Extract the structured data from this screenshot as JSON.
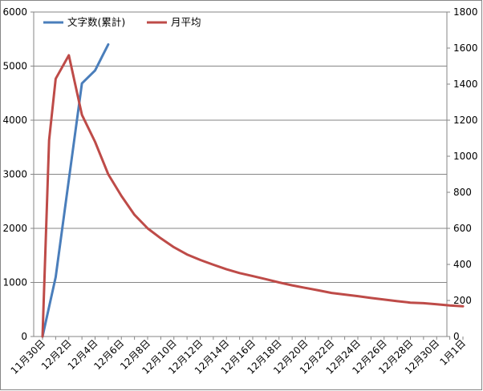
{
  "chart_data": {
    "type": "line",
    "title": "",
    "xlabel": "",
    "ylabel": "",
    "grid": true,
    "legend_position": "top-left",
    "x_tick_labels": [
      "11月30日",
      "12月2日",
      "12月4日",
      "12月6日",
      "12月8日",
      "12月10日",
      "12月12日",
      "12月14日",
      "12月16日",
      "12月18日",
      "12月20日",
      "12月22日",
      "12月24日",
      "12月26日",
      "12月28日",
      "12月30日",
      "1月1日"
    ],
    "y_left": {
      "range": [
        0,
        6000
      ],
      "ticks": [
        "0",
        "1000",
        "2000",
        "3000",
        "4000",
        "5000",
        "6000"
      ]
    },
    "y_right": {
      "range": [
        0,
        1800
      ],
      "ticks": [
        "0",
        "200",
        "400",
        "600",
        "800",
        "1000",
        "1200",
        "1400",
        "1600",
        "1800"
      ]
    },
    "series": [
      {
        "name": "文字数(累計)",
        "axis": "left",
        "color": "#4a7ebb",
        "x": [
          0,
          1,
          2,
          3,
          4,
          5
        ],
        "values": [
          0,
          1100,
          2900,
          4680,
          4920,
          5400
        ]
      },
      {
        "name": "月平均",
        "axis": "right",
        "color": "#be4b48",
        "x": [
          0,
          0.5,
          1,
          2,
          3,
          4,
          5,
          6,
          7,
          8,
          9,
          10,
          11,
          12,
          13,
          14,
          15,
          16,
          17,
          18,
          19,
          20,
          21,
          22,
          23,
          24,
          25,
          26,
          27,
          28,
          29,
          30,
          31,
          32
        ],
        "values": [
          0,
          1090,
          1430,
          1560,
          1230,
          1080,
          900,
          780,
          675,
          600,
          545,
          495,
          455,
          425,
          398,
          373,
          352,
          335,
          318,
          300,
          284,
          270,
          256,
          242,
          233,
          224,
          214,
          205,
          196,
          188,
          185,
          179,
          172,
          168
        ]
      }
    ]
  }
}
